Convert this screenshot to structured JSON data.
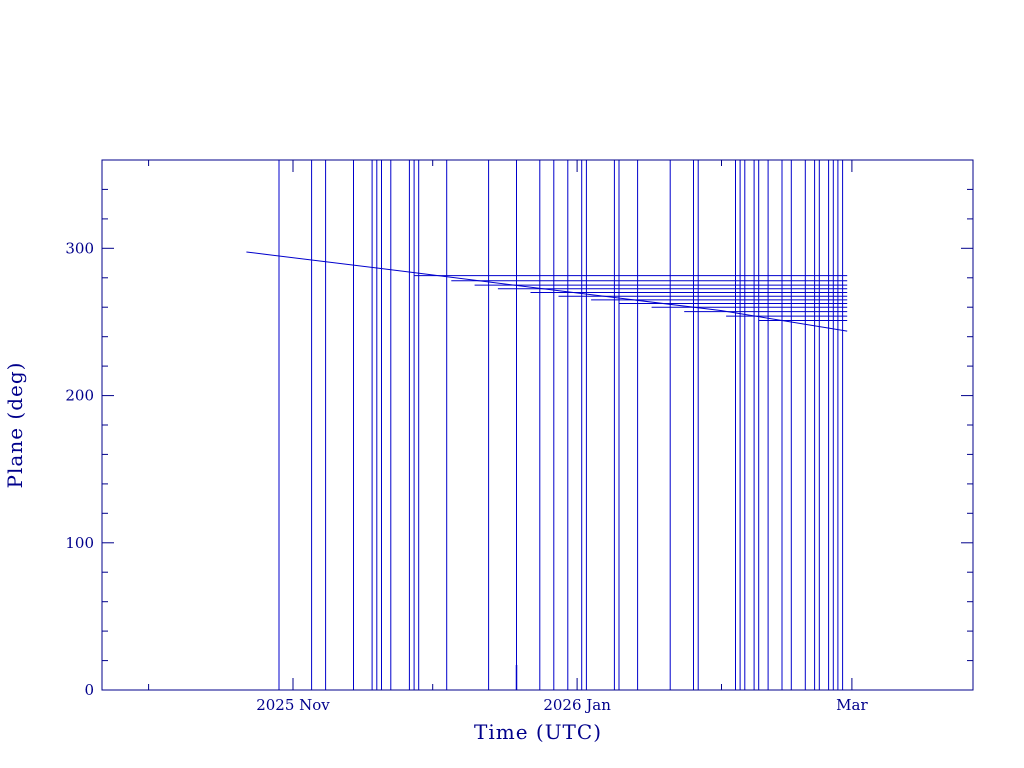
{
  "chart_data": {
    "type": "line",
    "title": "",
    "xlabel": "Time (UTC)",
    "ylabel": "Plane (deg)",
    "xlim": [
      "2025-09-21",
      "2026-03-27"
    ],
    "ylim": [
      0,
      360
    ],
    "x_ticks": [
      {
        "date": "2025-11-01",
        "label": "2025 Nov"
      },
      {
        "date": "2026-01-01",
        "label": "2026 Jan"
      },
      {
        "date": "2026-03-01",
        "label": "Mar"
      }
    ],
    "y_ticks": [
      0,
      100,
      200,
      300
    ],
    "y_minor_step": 20,
    "x_minor_ticks": [
      "2025-10-01",
      "2025-12-01",
      "2026-02-01"
    ],
    "grid": false,
    "legend": "none",
    "colors": {
      "series": "#0000cc",
      "axes": "#00008b",
      "text": "#00008b"
    },
    "series": [
      {
        "values": [
          {
            "x": "2025-10-22",
            "y": 297.5
          },
          {
            "x": "2025-11-27",
            "y": 283.5
          },
          {
            "x": "2025-12-29",
            "y": 270.8
          },
          {
            "x": "2026-02-01",
            "y": 257.7
          },
          {
            "x": "2026-02-28",
            "y": 243.8
          }
        ]
      }
    ],
    "spread_lines": [
      {
        "start": "2025-11-27",
        "end": "2026-02-28",
        "y": 281.5
      },
      {
        "start": "2025-12-05",
        "end": "2026-02-28",
        "y": 278.0
      },
      {
        "start": "2025-12-10",
        "end": "2026-02-28",
        "y": 275.0
      },
      {
        "start": "2025-12-15",
        "end": "2026-02-28",
        "y": 272.5
      },
      {
        "start": "2025-12-22",
        "end": "2026-02-28",
        "y": 270.0
      },
      {
        "start": "2025-12-28",
        "end": "2026-02-28",
        "y": 267.5
      },
      {
        "start": "2026-01-04",
        "end": "2026-02-28",
        "y": 265.0
      },
      {
        "start": "2026-01-10",
        "end": "2026-02-28",
        "y": 262.5
      },
      {
        "start": "2026-01-17",
        "end": "2026-02-28",
        "y": 260.0
      },
      {
        "start": "2026-01-24",
        "end": "2026-02-28",
        "y": 257.0
      },
      {
        "start": "2026-02-02",
        "end": "2026-02-28",
        "y": 254.0
      },
      {
        "start": "2026-02-09",
        "end": "2026-02-28",
        "y": 251.0
      }
    ],
    "gap_times": [
      "2025-10-29",
      "2025-11-05",
      "2025-11-08",
      "2025-11-14",
      "2025-11-18",
      "2025-11-19",
      "2025-11-20",
      "2025-11-22",
      "2025-11-26",
      "2025-11-27",
      "2025-11-28",
      "2025-12-04",
      "2025-12-13",
      "2025-12-19",
      "2025-12-24",
      "2025-12-27",
      "2025-12-30",
      "2026-01-02",
      "2026-01-03",
      "2026-01-09",
      "2026-01-10",
      "2026-01-14",
      "2026-01-21",
      "2026-01-26",
      "2026-01-27",
      "2026-02-04",
      "2026-02-05",
      "2026-02-06",
      "2026-02-08",
      "2026-02-09",
      "2026-02-11",
      "2026-02-14",
      "2026-02-16",
      "2026-02-19",
      "2026-02-21",
      "2026-02-22",
      "2026-02-24",
      "2026-02-25",
      "2026-02-26",
      "2026-02-27"
    ],
    "short_spikes": [
      {
        "x": "2025-12-19",
        "y": 17
      }
    ]
  }
}
